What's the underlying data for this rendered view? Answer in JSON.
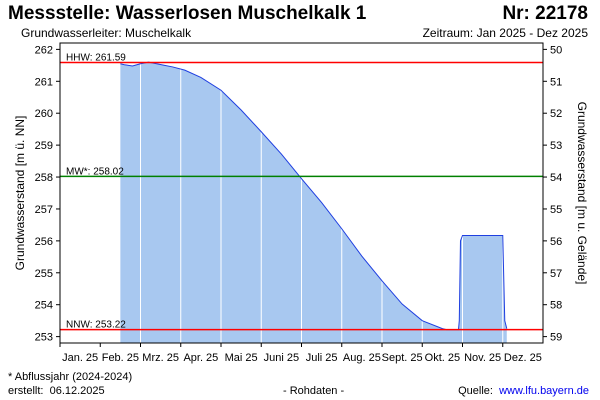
{
  "header": {
    "title": "Messstelle: Wasserlosen Muschelkalk 1",
    "number": "Nr: 22178",
    "aquifer": "Grundwasserleiter: Muschelkalk",
    "period": "Zeitraum: Jan 2025 - Dez 2025"
  },
  "footer": {
    "note": "* Abflussjahr (2024-2024)",
    "created_label": "erstellt:",
    "created_date": "06.12.2025",
    "raw": "- Rohdaten -",
    "source_label": "Quelle:",
    "source_link": "www.lfu.bayern.de"
  },
  "colors": {
    "fill": "#a8c8f0",
    "line": "#1f3fe0",
    "hhw": "#ff0000",
    "nnw": "#ff0000",
    "mw": "#008000",
    "gridline": "#ffffff"
  },
  "chart_data": {
    "type": "area",
    "ylabel_left": "Grundwasserstand [m ü. NN]",
    "ylabel_right": "Grundwasserstand [m u. Gelände]",
    "ylim_left": [
      252.8,
      262.2
    ],
    "ylim_right": [
      59.2,
      49.8
    ],
    "yticks_left": [
      253,
      254,
      255,
      256,
      257,
      258,
      259,
      260,
      261,
      262
    ],
    "yticks_right": [
      50,
      51,
      52,
      53,
      54,
      55,
      56,
      57,
      58,
      59
    ],
    "months": [
      "Jan. 25",
      "Feb. 25",
      "Mrz. 25",
      "Apr. 25",
      "Mai 25",
      "Juni 25",
      "Juli 25",
      "Aug. 25",
      "Sept. 25",
      "Okt. 25",
      "Nov. 25",
      "Dez. 25"
    ],
    "reference_lines": [
      {
        "key": "hhw",
        "label": "HHW: 261.59",
        "value": 261.59
      },
      {
        "key": "mw",
        "label": "MW*: 258.02",
        "value": 258.02
      },
      {
        "key": "nnw",
        "label": "NNW: 253.22",
        "value": 253.22
      }
    ],
    "series": [
      {
        "x_month": [
          2.0,
          2.1,
          2.3,
          2.5,
          2.7,
          2.9,
          3.1,
          3.3,
          3.6,
          4.0,
          4.5,
          5.0,
          5.5,
          6.0,
          6.5,
          7.0,
          7.5,
          8.0,
          8.5,
          9.0,
          9.5,
          10.0,
          10.1,
          10.3,
          10.4,
          10.42,
          10.45,
          10.5,
          11.5,
          11.55,
          11.6
        ],
        "level": [
          261.55,
          261.52,
          261.48,
          261.55,
          261.6,
          261.55,
          261.5,
          261.45,
          261.35,
          261.12,
          260.72,
          260.1,
          259.42,
          258.72,
          257.95,
          257.2,
          256.38,
          255.52,
          254.75,
          254.02,
          253.5,
          253.25,
          253.22,
          253.22,
          253.22,
          253.5,
          256.0,
          256.17,
          256.17,
          253.5,
          253.25
        ]
      }
    ]
  }
}
